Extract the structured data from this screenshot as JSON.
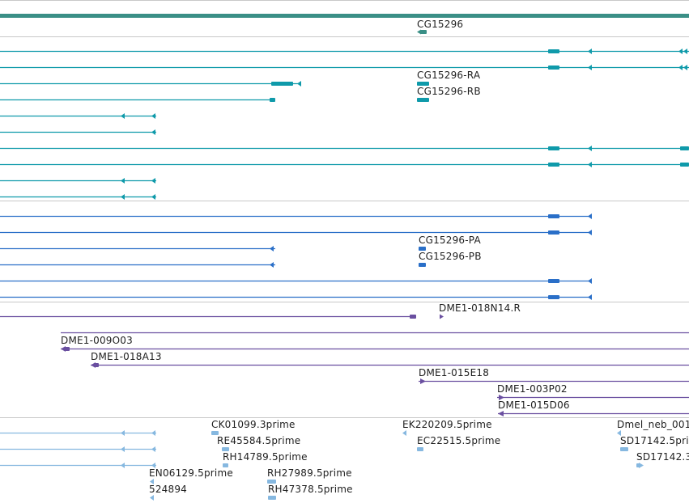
{
  "colors": {
    "gene": "#3a8f86",
    "transcript": "#0f9aaa",
    "protein": "#2a6fc8",
    "clone": "#6a4fa0",
    "est": "#86b8e0",
    "divider": "#c8c8c8"
  },
  "gene_track": {
    "labels": [
      "CG15296"
    ]
  },
  "transcript_track": {
    "labels": [
      "CG15296-RA",
      "CG15296-RB"
    ]
  },
  "protein_track": {
    "labels": [
      "CG15296-PA",
      "CG15296-PB"
    ]
  },
  "clone_track": {
    "labels": [
      "DME1-018N14.R",
      "DME1-009O03",
      "DME1-018A13",
      "DME1-015E18",
      "DME1-003P02",
      "DME1-015D06"
    ]
  },
  "est_track": {
    "labels": [
      "CK01099.3prime",
      "RE45584.5prime",
      "RH14789.5prime",
      "EN06129.5prime",
      "524894",
      "RH27989.5prime",
      "RH47378.5prime",
      "EK220209.5prime",
      "EC22515.5prime",
      "Dmel_neb_001",
      "SD17142.5pri",
      "SD17142.3"
    ]
  }
}
